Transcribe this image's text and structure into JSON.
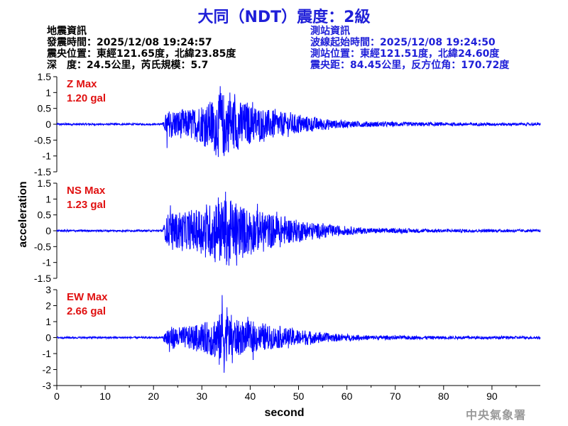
{
  "title": "大同（NDT）震度：2級",
  "quake_info": {
    "heading": "地震資訊",
    "origin_time": "發震時間：2025/12/08 19:24:57",
    "epicenter": "震央位置：東經121.65度，北緯23.85度",
    "depth_magnitude": "深　度：24.5公里，芮氏規模：5.7"
  },
  "station_info": {
    "heading": "測站資訊",
    "wave_start": "波線起始時間：2025/12/08 19:24:50",
    "location": "測站位置：東經121.51度，北緯24.60度",
    "distance": "震央距：84.45公里，反方位角：170.72度"
  },
  "watermark": "中央氣象署",
  "colors": {
    "title": "#1f1fd8",
    "trace": "#0000ff",
    "panel_label": "#e01010",
    "station_info": "#1f1fd8"
  },
  "chart_data": [
    {
      "type": "line",
      "component": "Z",
      "label_line1": "Z Max",
      "label_line2": "1.20 gal",
      "xlabel": "second",
      "ylabel": "acceleration",
      "xlim": [
        0,
        100
      ],
      "ylim": [
        -1.5,
        1.5
      ],
      "yticks": [
        -1.5,
        -1,
        -0.5,
        0,
        0.5,
        1,
        1.5
      ],
      "ytick_labels": [
        "-1.5",
        "-1",
        "-0.5",
        "0",
        "0.5",
        "1",
        "1.5"
      ],
      "xticks": [
        0,
        10,
        20,
        30,
        40,
        50,
        60,
        70,
        80,
        90
      ],
      "max_abs": 1.2,
      "onset": 22.2,
      "envelope": [
        [
          0,
          0.03
        ],
        [
          21.9,
          0.03
        ],
        [
          22.2,
          0.15
        ],
        [
          22.6,
          0.35
        ],
        [
          24,
          0.45
        ],
        [
          28,
          0.45
        ],
        [
          31,
          0.65
        ],
        [
          33,
          0.9
        ],
        [
          34.5,
          1.0
        ],
        [
          36,
          0.85
        ],
        [
          40,
          0.6
        ],
        [
          44,
          0.45
        ],
        [
          48,
          0.35
        ],
        [
          52,
          0.25
        ],
        [
          58,
          0.12
        ],
        [
          65,
          0.08
        ],
        [
          80,
          0.05
        ],
        [
          100,
          0.04
        ]
      ],
      "peaks": [
        [
          33.8,
          1.2
        ],
        [
          34.6,
          -1.0
        ],
        [
          35.8,
          1.0
        ],
        [
          32.6,
          -0.85
        ],
        [
          40.5,
          0.7
        ],
        [
          37.5,
          -0.8
        ],
        [
          22.8,
          -0.75
        ],
        [
          36.8,
          0.95
        ]
      ]
    },
    {
      "type": "line",
      "component": "NS",
      "label_line1": "NS Max",
      "label_line2": "1.23 gal",
      "xlabel": "second",
      "ylabel": "acceleration",
      "xlim": [
        0,
        100
      ],
      "ylim": [
        -1.5,
        1.5
      ],
      "yticks": [
        -1.5,
        -1,
        -0.5,
        0,
        0.5,
        1,
        1.5
      ],
      "ytick_labels": [
        "-1.5",
        "-1",
        "-0.5",
        "0",
        "0.5",
        "1",
        "1.5"
      ],
      "xticks": [
        0,
        10,
        20,
        30,
        40,
        50,
        60,
        70,
        80,
        90
      ],
      "max_abs": 1.23,
      "onset": 22.2,
      "envelope": [
        [
          0,
          0.03
        ],
        [
          21.9,
          0.03
        ],
        [
          22.2,
          0.2
        ],
        [
          23,
          0.55
        ],
        [
          25,
          0.55
        ],
        [
          28,
          0.6
        ],
        [
          31,
          0.8
        ],
        [
          33,
          0.95
        ],
        [
          35,
          1.0
        ],
        [
          37,
          0.85
        ],
        [
          40,
          0.7
        ],
        [
          44,
          0.55
        ],
        [
          48,
          0.4
        ],
        [
          52,
          0.28
        ],
        [
          58,
          0.15
        ],
        [
          65,
          0.08
        ],
        [
          80,
          0.05
        ],
        [
          100,
          0.04
        ]
      ],
      "peaks": [
        [
          34.9,
          1.23
        ],
        [
          35.6,
          -1.1
        ],
        [
          33.4,
          1.05
        ],
        [
          37.2,
          -1.1
        ],
        [
          41.5,
          0.85
        ],
        [
          23.5,
          0.8
        ],
        [
          40.2,
          -0.75
        ],
        [
          45.5,
          0.6
        ]
      ]
    },
    {
      "type": "line",
      "component": "EW",
      "label_line1": "EW Max",
      "label_line2": "2.66 gal",
      "xlabel": "second",
      "ylabel": "acceleration",
      "xlim": [
        0,
        100
      ],
      "ylim": [
        -3,
        3
      ],
      "yticks": [
        -3,
        -2,
        -1,
        0,
        1,
        2,
        3
      ],
      "ytick_labels": [
        "-3",
        "-2",
        "-1",
        "0",
        "1",
        "2",
        "3"
      ],
      "xticks": [
        0,
        10,
        20,
        30,
        40,
        50,
        60,
        70,
        80,
        90
      ],
      "max_abs": 2.66,
      "onset": 22.2,
      "envelope": [
        [
          0,
          0.06
        ],
        [
          21.9,
          0.06
        ],
        [
          22.2,
          0.3
        ],
        [
          23,
          0.7
        ],
        [
          26,
          0.65
        ],
        [
          29,
          0.8
        ],
        [
          31,
          1.0
        ],
        [
          33,
          1.4
        ],
        [
          34.5,
          1.6
        ],
        [
          36,
          1.3
        ],
        [
          38,
          1.0
        ],
        [
          41,
          0.9
        ],
        [
          45,
          0.7
        ],
        [
          50,
          0.5
        ],
        [
          55,
          0.3
        ],
        [
          62,
          0.15
        ],
        [
          75,
          0.1
        ],
        [
          100,
          0.08
        ]
      ],
      "peaks": [
        [
          34.2,
          2.66
        ],
        [
          34.6,
          -2.2
        ],
        [
          35.2,
          1.9
        ],
        [
          33.6,
          -1.7
        ],
        [
          39.5,
          1.3
        ],
        [
          40.6,
          -1.4
        ],
        [
          23.3,
          -0.9
        ],
        [
          36.3,
          -1.6
        ]
      ]
    }
  ],
  "x_tick_labels": [
    "0",
    "10",
    "20",
    "30",
    "40",
    "50",
    "60",
    "70",
    "80",
    "90"
  ],
  "x_axis_label": "second",
  "y_axis_label": "acceleration"
}
